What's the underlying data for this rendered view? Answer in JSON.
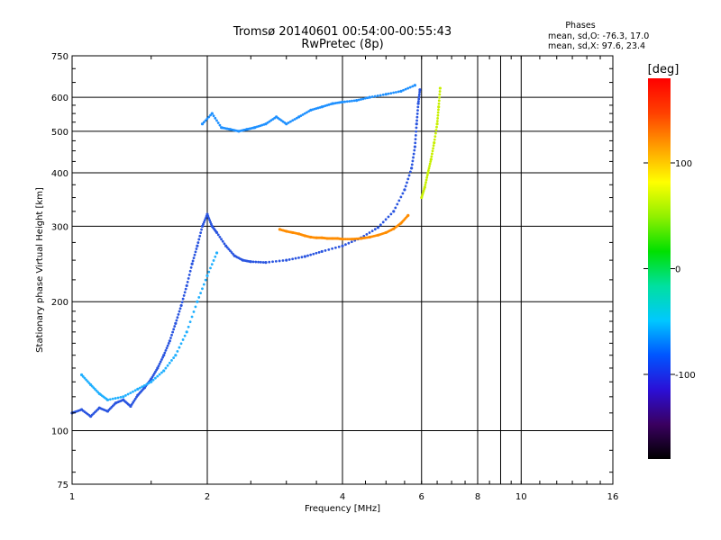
{
  "chart_data": {
    "type": "scatter",
    "title": "Tromsø 20140601 00:54:00-00:55:43",
    "subtitle": "RwPretec (8p)",
    "xlabel": "Frequency [MHz]",
    "ylabel": "Stationary phase Virtual Height [km]",
    "x_scale": "log",
    "y_scale": "log",
    "xlim": [
      1,
      16
    ],
    "ylim": [
      75,
      750
    ],
    "x_ticks": [
      1,
      2,
      4,
      6,
      8,
      10,
      16
    ],
    "x_tick_labels": [
      "1",
      "2",
      "4",
      "6",
      "8",
      "10",
      "16"
    ],
    "y_ticks": [
      75,
      100,
      200,
      300,
      400,
      500,
      600,
      750
    ],
    "y_tick_labels": [
      "75",
      "100",
      "200",
      "300",
      "400",
      "500",
      "600",
      "750"
    ],
    "grid": true,
    "phase_info": {
      "title": "Phases",
      "line_o": "mean, sd,O: -76.3, 17.0",
      "line_x": "mean, sd,X:  97.6, 23.4"
    },
    "colorbar": {
      "label": "[deg]",
      "min": -180,
      "max": 180,
      "ticks": [
        100,
        0,
        -100
      ],
      "tick_labels": [
        "100",
        "0",
        "-100"
      ],
      "colormap": [
        "#000000",
        "#3a0060",
        "#2b0fd6",
        "#0055ff",
        "#00c8ff",
        "#00e0a0",
        "#00e000",
        "#90f000",
        "#ffff00",
        "#ffa000",
        "#ff4000",
        "#ff0000"
      ]
    },
    "traces": [
      {
        "name": "",
        "color": "#2a55e0",
        "points": [
          [
            1.0,
            110
          ],
          [
            1.05,
            112
          ],
          [
            1.1,
            108
          ],
          [
            1.15,
            113
          ],
          [
            1.2,
            111
          ],
          [
            1.25,
            116
          ],
          [
            1.3,
            118
          ],
          [
            1.35,
            114
          ],
          [
            1.4,
            121
          ],
          [
            1.45,
            126
          ],
          [
            1.5,
            132
          ],
          [
            1.55,
            140
          ],
          [
            1.6,
            150
          ],
          [
            1.65,
            162
          ],
          [
            1.7,
            178
          ],
          [
            1.75,
            196
          ],
          [
            1.8,
            218
          ],
          [
            1.85,
            245
          ],
          [
            1.9,
            270
          ],
          [
            1.95,
            300
          ],
          [
            2.0,
            320
          ],
          [
            2.05,
            300
          ],
          [
            2.1,
            290
          ],
          [
            2.2,
            270
          ],
          [
            2.3,
            256
          ],
          [
            2.4,
            250
          ],
          [
            2.5,
            248
          ],
          [
            2.7,
            247
          ],
          [
            3.0,
            250
          ],
          [
            3.3,
            255
          ],
          [
            3.6,
            262
          ],
          [
            4.0,
            270
          ],
          [
            4.4,
            282
          ],
          [
            4.8,
            298
          ],
          [
            5.2,
            325
          ],
          [
            5.5,
            365
          ],
          [
            5.7,
            410
          ],
          [
            5.8,
            460
          ],
          [
            5.85,
            520
          ],
          [
            5.9,
            580
          ],
          [
            5.95,
            625
          ]
        ]
      },
      {
        "name": "",
        "color": "#ff8c00",
        "points": [
          [
            2.9,
            295
          ],
          [
            3.0,
            292
          ],
          [
            3.1,
            290
          ],
          [
            3.2,
            288
          ],
          [
            3.3,
            285
          ],
          [
            3.4,
            283
          ],
          [
            3.5,
            282
          ],
          [
            3.6,
            282
          ],
          [
            3.7,
            281
          ],
          [
            3.8,
            281
          ],
          [
            3.9,
            281
          ],
          [
            4.0,
            280
          ],
          [
            4.2,
            280
          ],
          [
            4.4,
            281
          ],
          [
            4.6,
            283
          ],
          [
            4.8,
            286
          ],
          [
            5.0,
            290
          ],
          [
            5.2,
            296
          ],
          [
            5.4,
            305
          ],
          [
            5.6,
            318
          ]
        ]
      },
      {
        "name": "",
        "color": "#1e90ff",
        "points": [
          [
            1.95,
            520
          ],
          [
            2.05,
            550
          ],
          [
            2.15,
            510
          ],
          [
            2.25,
            505
          ],
          [
            2.35,
            500
          ],
          [
            2.45,
            505
          ],
          [
            2.55,
            510
          ],
          [
            2.7,
            520
          ],
          [
            2.85,
            540
          ],
          [
            3.0,
            520
          ],
          [
            3.2,
            540
          ],
          [
            3.4,
            560
          ],
          [
            3.6,
            570
          ],
          [
            3.8,
            580
          ],
          [
            4.0,
            585
          ],
          [
            4.3,
            590
          ],
          [
            4.6,
            600
          ],
          [
            5.0,
            610
          ],
          [
            5.4,
            620
          ],
          [
            5.8,
            640
          ]
        ]
      },
      {
        "name": "",
        "color": "#20b0ff",
        "points": [
          [
            1.05,
            135
          ],
          [
            1.1,
            128
          ],
          [
            1.15,
            122
          ],
          [
            1.2,
            118
          ],
          [
            1.3,
            120
          ],
          [
            1.4,
            125
          ],
          [
            1.5,
            130
          ],
          [
            1.6,
            138
          ],
          [
            1.7,
            150
          ],
          [
            1.8,
            170
          ],
          [
            1.9,
            200
          ],
          [
            2.0,
            230
          ],
          [
            2.1,
            260
          ]
        ]
      },
      {
        "name": "",
        "color": "#c8f000",
        "points": [
          [
            6.0,
            350
          ],
          [
            6.1,
            370
          ],
          [
            6.2,
            400
          ],
          [
            6.3,
            430
          ],
          [
            6.4,
            470
          ],
          [
            6.5,
            520
          ],
          [
            6.55,
            570
          ],
          [
            6.6,
            630
          ]
        ]
      }
    ]
  }
}
